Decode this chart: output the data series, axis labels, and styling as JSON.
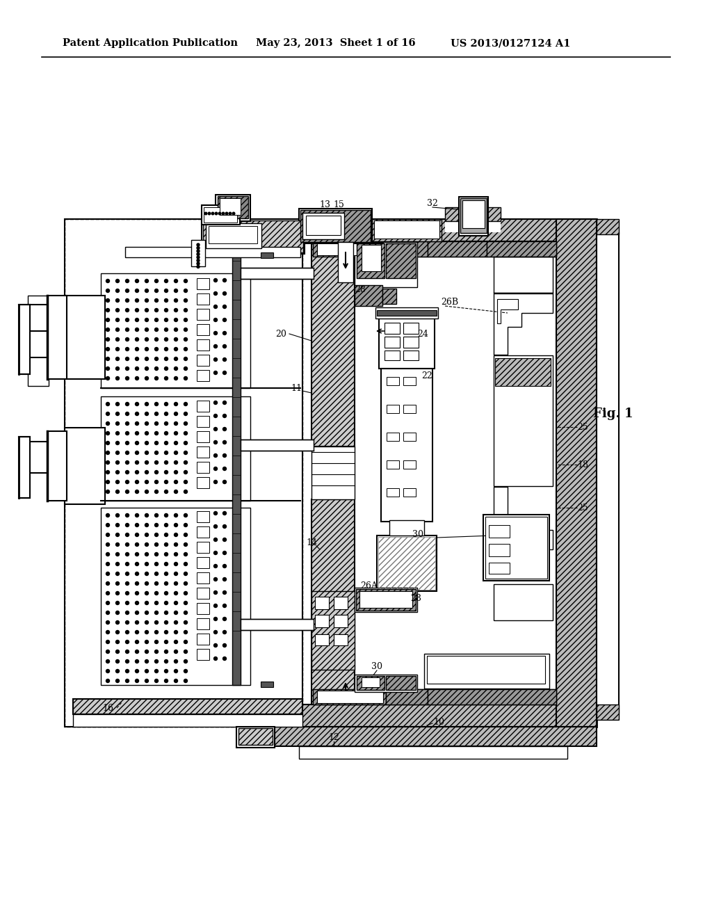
{
  "bg_color": "#ffffff",
  "header_left": "Patent Application Publication",
  "header_mid": "May 23, 2013  Sheet 1 of 16",
  "header_right": "US 2013/0127124 A1",
  "fig_label": "Fig. 1",
  "header_fontsize": 10.5,
  "fig_fontsize": 13
}
